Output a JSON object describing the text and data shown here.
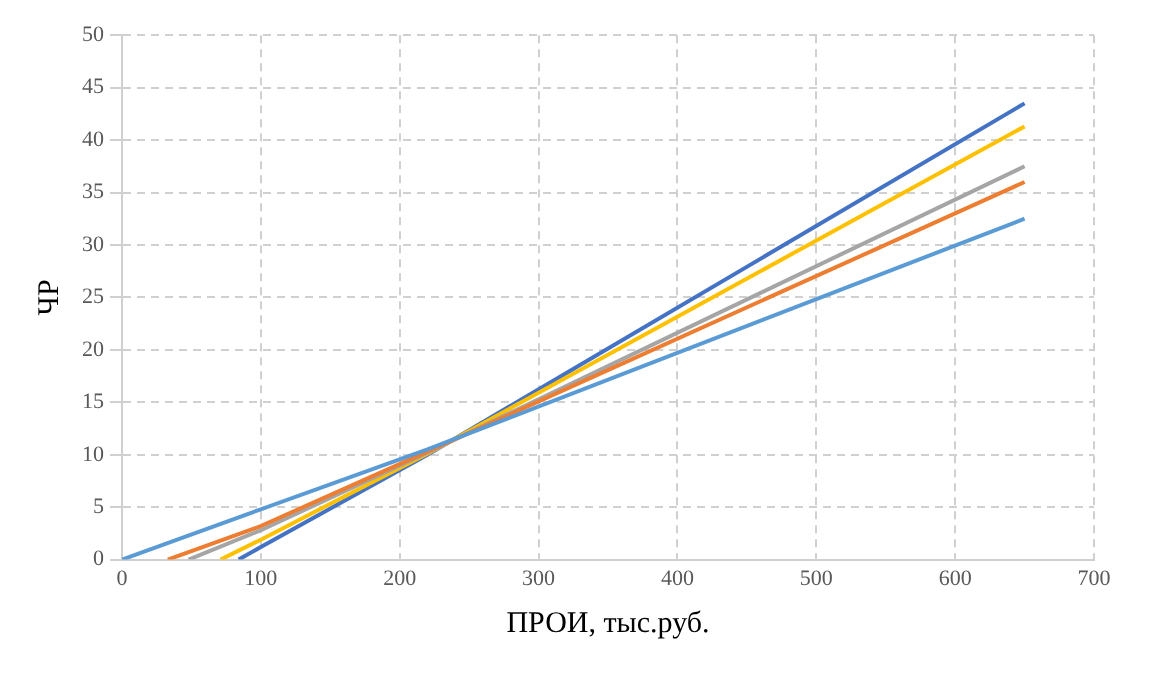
{
  "chart_data": {
    "type": "line",
    "xlabel": "ПРОИ, тыс.руб.",
    "ylabel": "ЧР",
    "xlim": [
      0,
      700
    ],
    "xticks": [
      0,
      100,
      200,
      300,
      400,
      500,
      600,
      700
    ],
    "ylim": [
      0,
      50
    ],
    "yticks": [
      0,
      5,
      10,
      15,
      20,
      25,
      30,
      35,
      40,
      45,
      50
    ],
    "grid": true,
    "legend": false,
    "marker": "none",
    "line_style": "solid",
    "series": [
      {
        "color": "#5b9bd5",
        "x": [
          0,
          100,
          220,
          650
        ],
        "values": [
          0,
          4.8,
          10.5,
          32.5
        ]
      },
      {
        "color": "#ed7d31",
        "x": [
          33,
          100,
          220,
          650
        ],
        "values": [
          0,
          3.2,
          10.3,
          36
        ]
      },
      {
        "color": "#a5a5a5",
        "x": [
          48,
          100,
          220,
          650
        ],
        "values": [
          0,
          2.8,
          10.2,
          37.5
        ]
      },
      {
        "color": "#ffc000",
        "x": [
          71,
          100,
          220,
          650
        ],
        "values": [
          0,
          1.9,
          10.1,
          41.3
        ]
      },
      {
        "color": "#4472c4",
        "x": [
          84,
          100,
          220,
          650
        ],
        "values": [
          0,
          1.2,
          10,
          43.5
        ]
      }
    ]
  }
}
